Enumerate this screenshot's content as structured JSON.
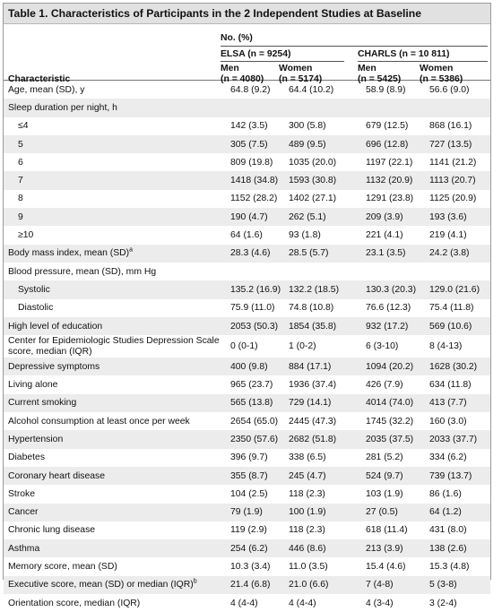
{
  "title": "Table 1. Characteristics of Participants in the 2 Independent Studies at Baseline",
  "header": {
    "characteristic": "Characteristic",
    "no_pct": "No. (%)",
    "elsa": "ELSA (n = 9254)",
    "charls": "CHARLS (n = 10 811)",
    "elsa_men_1": "Men",
    "elsa_men_2": "(n = 4080)",
    "elsa_women_1": "Women",
    "elsa_women_2": "(n = 5174)",
    "charls_men_1": "Men",
    "charls_men_2": "(n = 5425)",
    "charls_women_1": "Women",
    "charls_women_2": "(n = 5386)"
  },
  "rows": [
    {
      "label": "Age, mean (SD), y",
      "v": [
        "64.8 (9.2)",
        "64.4 (10.2)",
        "58.9 (8.9)",
        "56.6 (9.0)"
      ]
    },
    {
      "label": "Sleep duration per night, h",
      "v": [
        "",
        "",
        "",
        ""
      ]
    },
    {
      "label": "≤4",
      "v": [
        "142 (3.5)",
        "300 (5.8)",
        "679 (12.5)",
        "868 (16.1)"
      ]
    },
    {
      "label": "5",
      "v": [
        "305 (7.5)",
        "489 (9.5)",
        "696 (12.8)",
        "727 (13.5)"
      ]
    },
    {
      "label": "6",
      "v": [
        "809 (19.8)",
        "1035 (20.0)",
        "1197 (22.1)",
        "1141 (21.2)"
      ]
    },
    {
      "label": "7",
      "v": [
        "1418 (34.8)",
        "1593 (30.8)",
        "1132 (20.9)",
        "1113 (20.7)"
      ]
    },
    {
      "label": "8",
      "v": [
        "1152 (28.2)",
        "1402 (27.1)",
        "1291 (23.8)",
        "1125 (20.9)"
      ]
    },
    {
      "label": "9",
      "v": [
        "190 (4.7)",
        "262 (5.1)",
        "209 (3.9)",
        "193 (3.6)"
      ]
    },
    {
      "label": "≥10",
      "v": [
        "64 (1.6)",
        "93 (1.8)",
        "221 (4.1)",
        "219 (4.1)"
      ]
    },
    {
      "label": "Body mass index, mean (SD)",
      "sup": "a",
      "v": [
        "28.3 (4.6)",
        "28.5 (5.7)",
        "23.1 (3.5)",
        "24.2 (3.8)"
      ]
    },
    {
      "label": "Blood pressure, mean (SD), mm Hg",
      "v": [
        "",
        "",
        "",
        ""
      ]
    },
    {
      "label": "Systolic",
      "v": [
        "135.2 (16.9)",
        "132.2 (18.5)",
        "130.3 (20.3)",
        "129.0 (21.6)"
      ]
    },
    {
      "label": "Diastolic",
      "v": [
        "75.9 (11.0)",
        "74.8 (10.8)",
        "76.6 (12.3)",
        "75.4 (11.8)"
      ]
    },
    {
      "label": "High level of education",
      "v": [
        "2053 (50.3)",
        "1854 (35.8)",
        "932 (17.2)",
        "569 (10.6)"
      ]
    },
    {
      "label": "Center for Epidemiologic Studies Depression Scale score, median (IQR)",
      "v": [
        "0 (0-1)",
        "1 (0-2)",
        "6 (3-10)",
        "8 (4-13)"
      ]
    },
    {
      "label": "Depressive symptoms",
      "v": [
        "400 (9.8)",
        "884 (17.1)",
        "1094 (20.2)",
        "1628 (30.2)"
      ]
    },
    {
      "label": "Living alone",
      "v": [
        "965 (23.7)",
        "1936 (37.4)",
        "426 (7.9)",
        "634 (11.8)"
      ]
    },
    {
      "label": "Current smoking",
      "v": [
        "565 (13.8)",
        "729 (14.1)",
        "4014 (74.0)",
        "413 (7.7)"
      ]
    },
    {
      "label": "Alcohol consumption at least once per week",
      "v": [
        "2654 (65.0)",
        "2445 (47.3)",
        "1745 (32.2)",
        "160 (3.0)"
      ]
    },
    {
      "label": "Hypertension",
      "v": [
        "2350 (57.6)",
        "2682 (51.8)",
        "2035 (37.5)",
        "2033 (37.7)"
      ]
    },
    {
      "label": "Diabetes",
      "v": [
        "396 (9.7)",
        "338 (6.5)",
        "281 (5.2)",
        "334 (6.2)"
      ]
    },
    {
      "label": "Coronary heart disease",
      "v": [
        "355 (8.7)",
        "245 (4.7)",
        "524 (9.7)",
        "739 (13.7)"
      ]
    },
    {
      "label": "Stroke",
      "v": [
        "104 (2.5)",
        "118 (2.3)",
        "103 (1.9)",
        "86 (1.6)"
      ]
    },
    {
      "label": "Cancer",
      "v": [
        "79 (1.9)",
        "100 (1.9)",
        "27 (0.5)",
        "64 (1.2)"
      ]
    },
    {
      "label": "Chronic lung disease",
      "v": [
        "119 (2.9)",
        "118 (2.3)",
        "618 (11.4)",
        "431 (8.0)"
      ]
    },
    {
      "label": "Asthma",
      "v": [
        "254 (6.2)",
        "446 (8.6)",
        "213 (3.9)",
        "138 (2.6)"
      ]
    },
    {
      "label": "Memory score, mean (SD)",
      "v": [
        "10.3 (3.4)",
        "11.0 (3.5)",
        "15.4 (4.6)",
        "15.3 (4.8)"
      ]
    },
    {
      "label": "Executive score, mean (SD) or median (IQR)",
      "sup": "b",
      "v": [
        "21.4 (6.8)",
        "21.0 (6.6)",
        "7 (4-8)",
        "5 (3-8)"
      ]
    },
    {
      "label": "Orientation score, median (IQR)",
      "v": [
        "4 (4-4)",
        "4 (4-4)",
        "4 (3-4)",
        "3 (2-4)"
      ]
    }
  ]
}
